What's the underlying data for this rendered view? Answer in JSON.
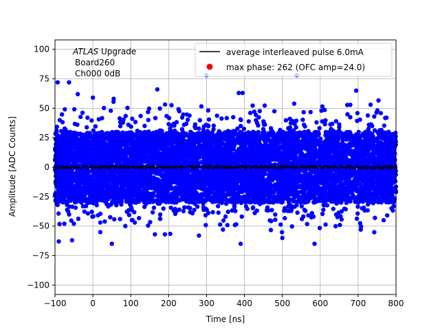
{
  "chart_data": {
    "type": "scatter",
    "xlabel": "Time [ns]",
    "ylabel": "Amplitude [ADC Counts]",
    "xlim": [
      -100,
      800
    ],
    "ylim": [
      -108,
      108
    ],
    "x_ticks": [
      -100,
      0,
      100,
      200,
      300,
      400,
      500,
      600,
      700,
      800
    ],
    "y_ticks": [
      -100,
      -75,
      -50,
      -25,
      0,
      25,
      50,
      75,
      100
    ],
    "grid": true,
    "legend_position": "top-right",
    "annotation": {
      "experiment": "ATLAS",
      "experiment_suffix": " Upgrade",
      "line2": "Board260",
      "line3": "Ch000 0dB"
    },
    "series": [
      {
        "name": "average interleaved pulse 6.0mA",
        "kind": "line",
        "color": "#000000",
        "description_values": {
          "mean": 0,
          "spread": 3
        }
      },
      {
        "name": "max phase: 262 (OFC amp=24.0)",
        "kind": "scatter",
        "color": "#ff0000",
        "points": []
      },
      {
        "kind": "scatter",
        "color": "#0000ff",
        "spread": {
          "core_sigma": 13,
          "bulk_range": [
            -30,
            30
          ]
        },
        "outliers": [
          [
            -93,
            72
          ],
          [
            -63,
            72
          ],
          [
            538,
            78
          ],
          [
            300,
            78
          ],
          [
            695,
            65
          ],
          [
            170,
            66
          ],
          [
            -40,
            62
          ],
          [
            0,
            59
          ],
          [
            385,
            63
          ],
          [
            395,
            63
          ],
          [
            55,
            58
          ],
          [
            733,
            53
          ],
          [
            -90,
            -63
          ],
          [
            -55,
            -62
          ],
          [
            50,
            -65
          ],
          [
            390,
            -65
          ],
          [
            585,
            -65
          ],
          [
            500,
            -60
          ],
          [
            280,
            -58
          ],
          [
            190,
            -57
          ]
        ]
      }
    ]
  }
}
